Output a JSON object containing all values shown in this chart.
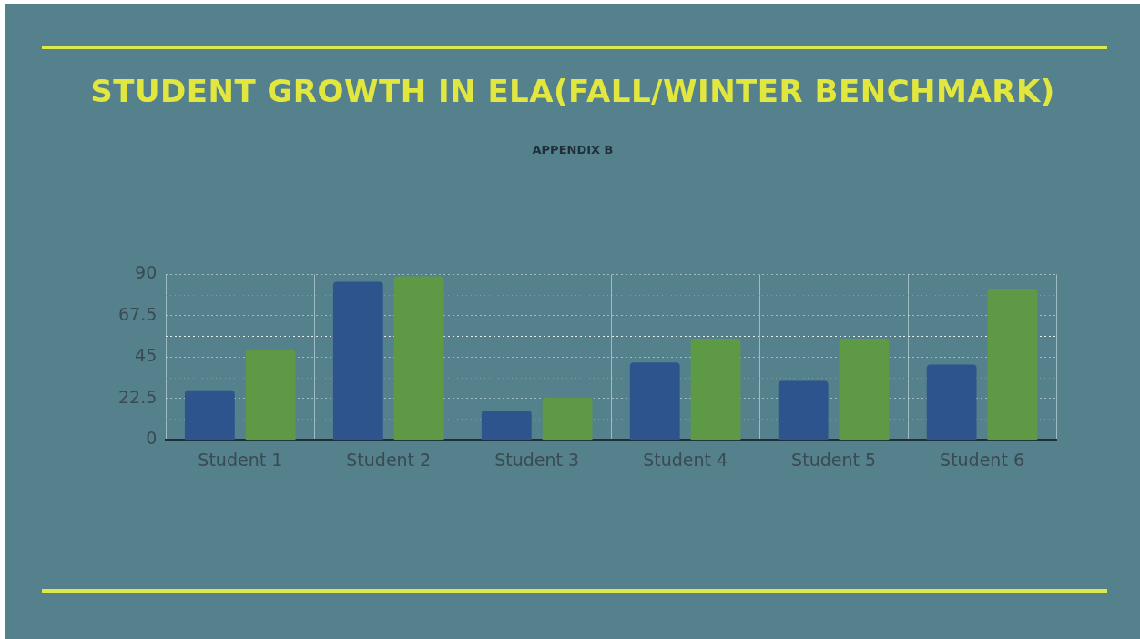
{
  "chart_data": {
    "type": "bar",
    "title": "STUDENT GROWTH IN ELA(FALL/WINTER BENCHMARK)",
    "subtitle": "APPENDIX B",
    "categories": [
      "Student 1",
      "Student 2",
      "Student 3",
      "Student 4",
      "Student 5",
      "Student 6"
    ],
    "series": [
      {
        "color": "#2d548c",
        "values": [
          27,
          86,
          16,
          42,
          32,
          41
        ]
      },
      {
        "color": "#5e9a46",
        "values": [
          49,
          89,
          23,
          55,
          55,
          82
        ]
      }
    ],
    "ylim": [
      0,
      90
    ],
    "yticks": [
      0,
      {
        "value": 11.25,
        "label": null
      },
      22.5,
      {
        "value": 33.75,
        "label": null
      },
      45,
      {
        "value": 56.25,
        "label": null
      },
      67.5,
      {
        "value": 78.75,
        "label": null
      },
      90
    ],
    "grid": true,
    "legend": false
  }
}
